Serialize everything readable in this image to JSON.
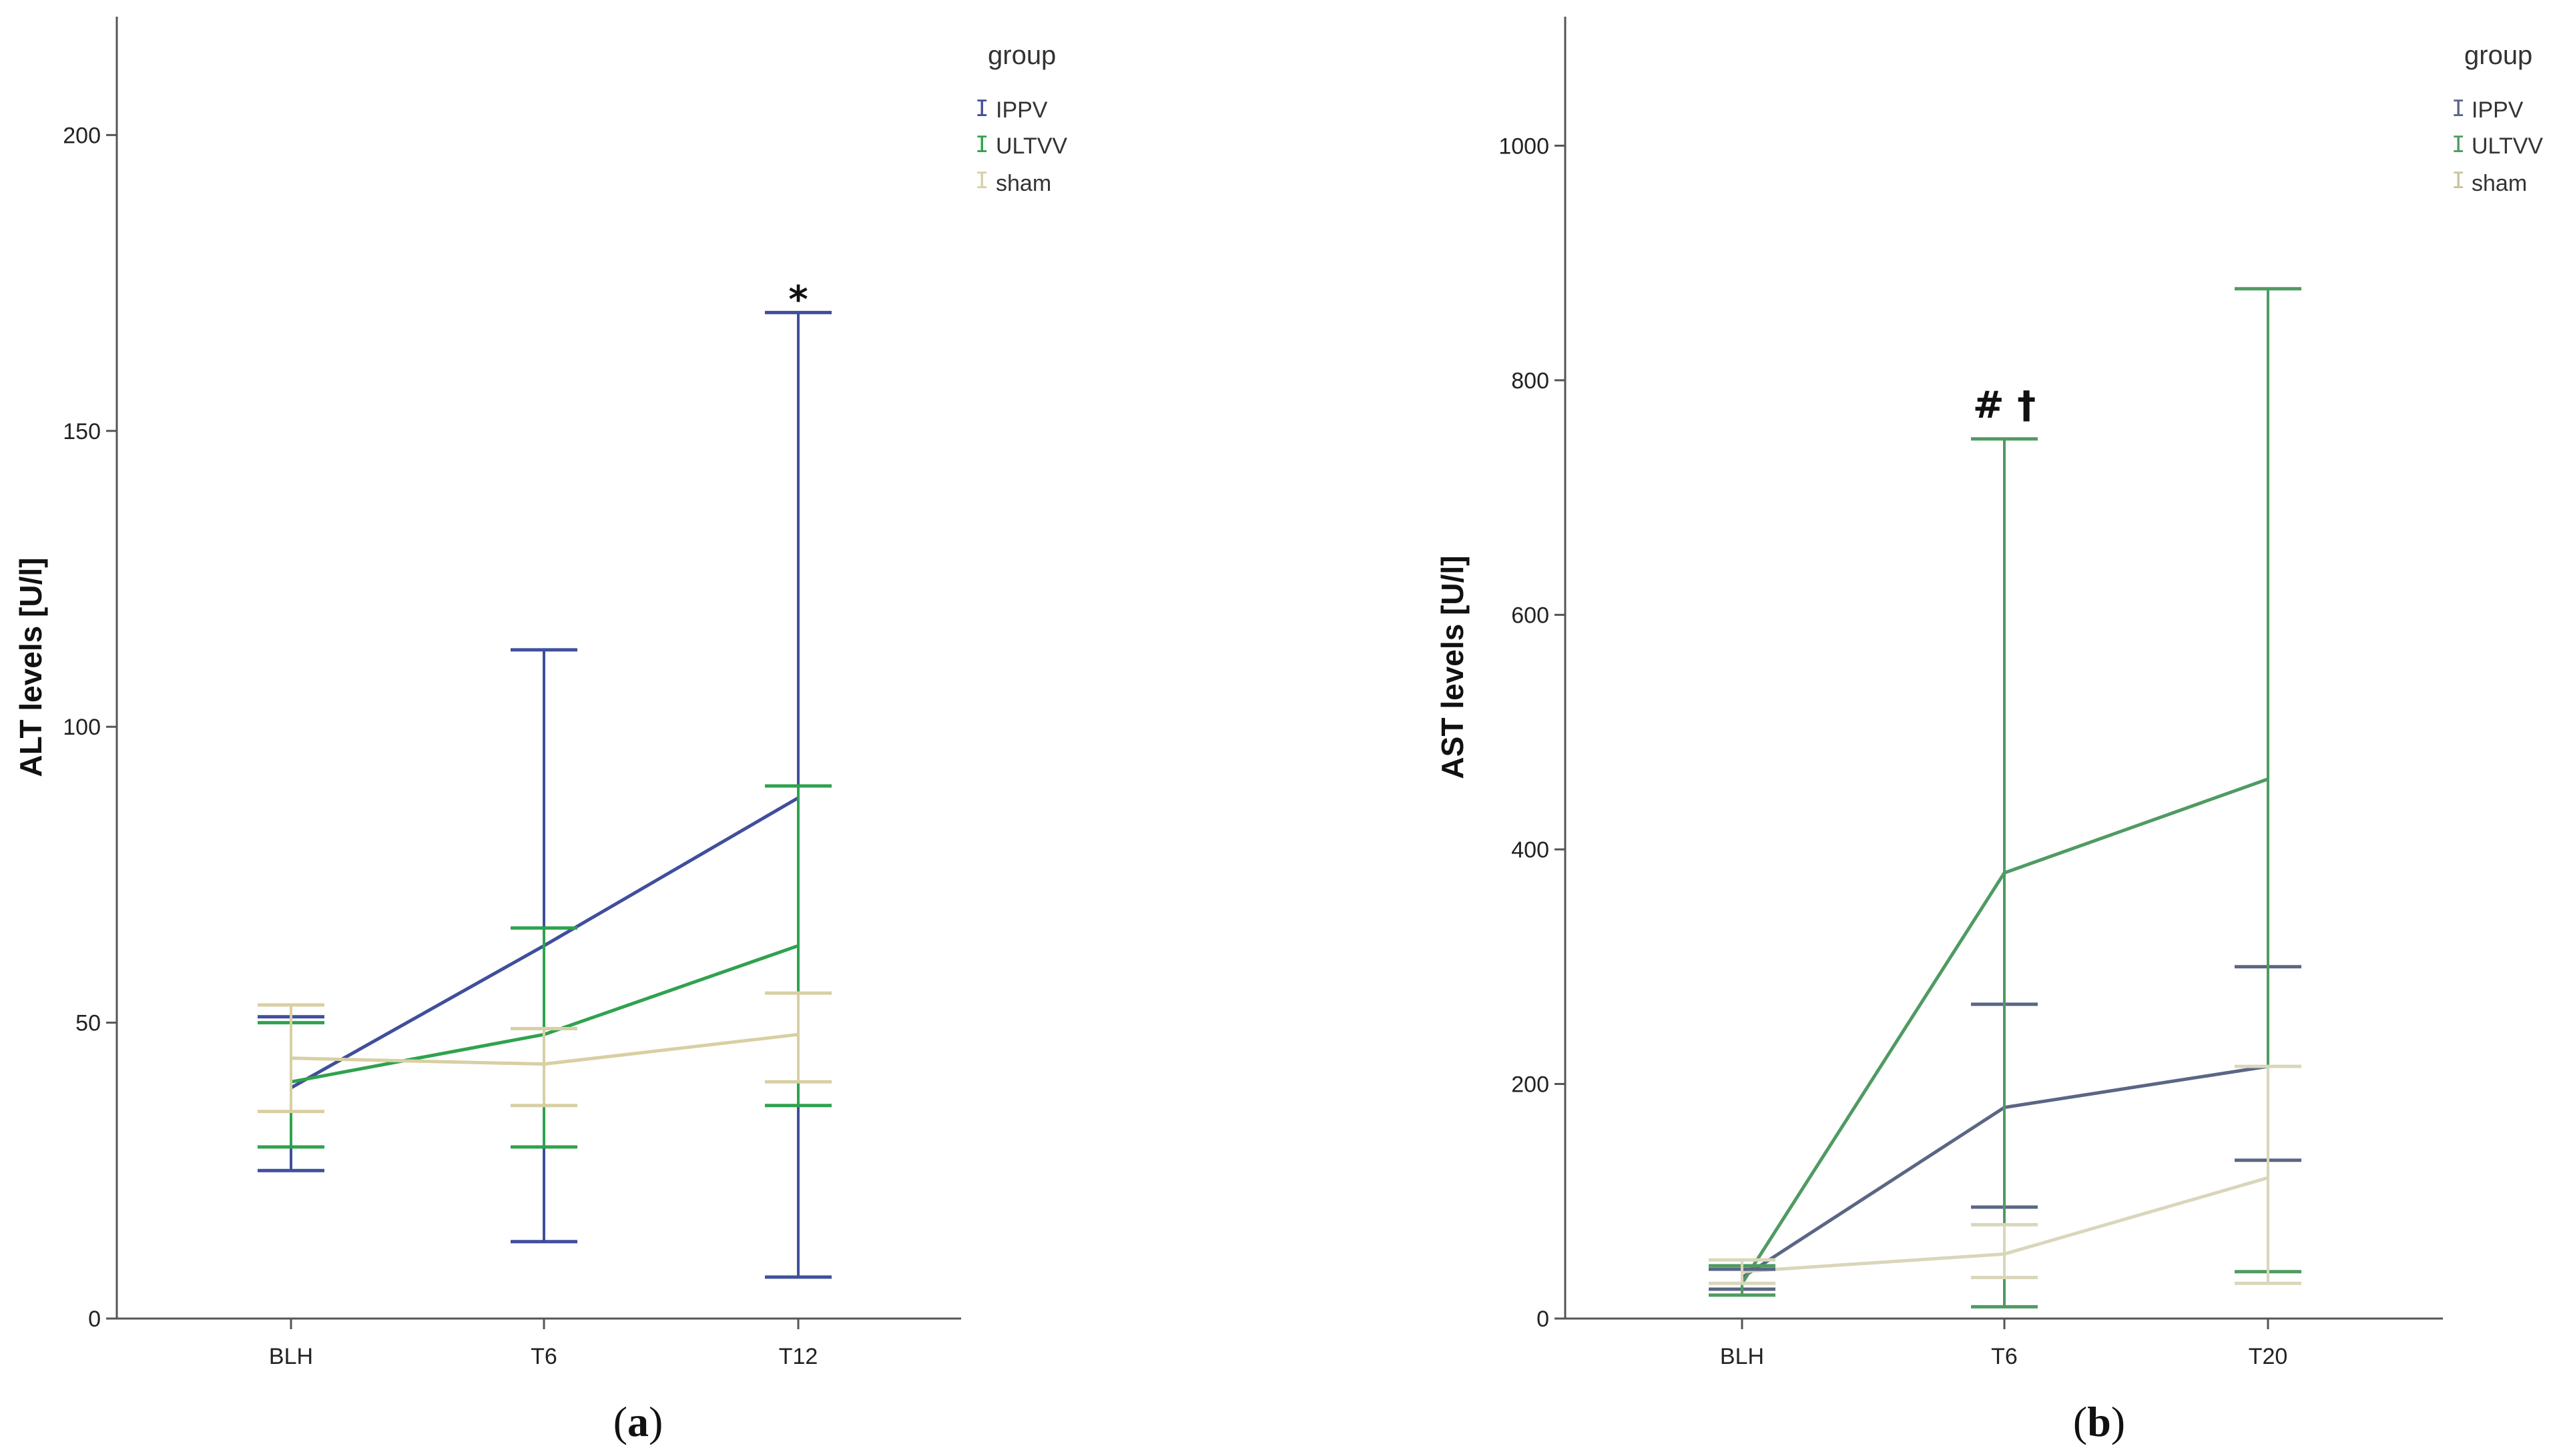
{
  "chart_data": [
    {
      "id": "a",
      "type": "line",
      "panel_label": "a",
      "title": "",
      "xlabel": "",
      "ylabel": "ALT levels [U/l]",
      "categories": [
        "BLH",
        "T6",
        "T12"
      ],
      "ylim": [
        0,
        220
      ],
      "yticks": [
        0,
        50,
        100,
        150,
        200
      ],
      "legend": {
        "title": "group",
        "position": "top-right"
      },
      "series": [
        {
          "name": "IPPV",
          "color": "#3f4f9c",
          "values": [
            39,
            63,
            88
          ],
          "lower": [
            25,
            13,
            7
          ],
          "upper": [
            51,
            113,
            170
          ]
        },
        {
          "name": "ULTVV",
          "color": "#2fa24e",
          "values": [
            40,
            48,
            63
          ],
          "lower": [
            29,
            29,
            36
          ],
          "upper": [
            50,
            66,
            90
          ]
        },
        {
          "name": "sham",
          "color": "#d8cfa3",
          "values": [
            44,
            43,
            48
          ],
          "lower": [
            35,
            36,
            40
          ],
          "upper": [
            53,
            49,
            55
          ]
        }
      ],
      "annotations": [
        {
          "text": "*",
          "category": "T12",
          "y": 177
        }
      ]
    },
    {
      "id": "b",
      "type": "line",
      "panel_label": "b",
      "title": "",
      "xlabel": "",
      "ylabel": "AST levels [U/l]",
      "categories": [
        "BLH",
        "T6",
        "T20"
      ],
      "ylim": [
        0,
        1110
      ],
      "yticks": [
        0,
        200,
        400,
        600,
        800,
        1000
      ],
      "legend": {
        "title": "group",
        "position": "top-right"
      },
      "series": [
        {
          "name": "IPPV",
          "color": "#5a6684",
          "values": [
            35,
            180,
            215
          ],
          "lower": [
            25,
            95,
            135
          ],
          "upper": [
            42,
            268,
            300
          ]
        },
        {
          "name": "ULTVV",
          "color": "#4f9b62",
          "values": [
            30,
            380,
            460
          ],
          "lower": [
            20,
            10,
            40
          ],
          "upper": [
            45,
            750,
            878
          ]
        },
        {
          "name": "sham",
          "color": "#d9d6bb",
          "values": [
            40,
            55,
            120
          ],
          "lower": [
            30,
            35,
            30
          ],
          "upper": [
            50,
            80,
            215
          ]
        }
      ],
      "annotations": [
        {
          "text": "# †",
          "category": "T6",
          "y": 780
        }
      ]
    }
  ]
}
